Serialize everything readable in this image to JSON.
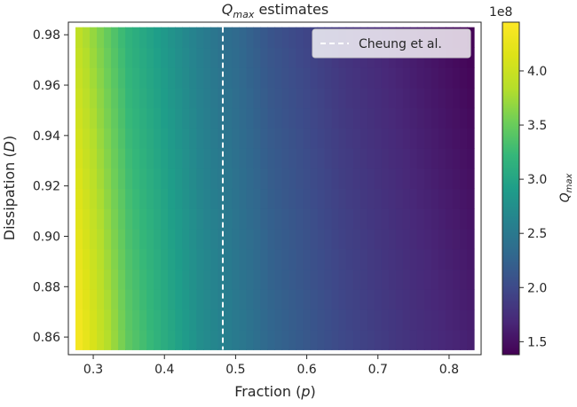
{
  "chart_data": {
    "type": "heatmap",
    "title": {
      "main": "Q",
      "sub": "max",
      "rest": " estimates"
    },
    "xlabel": {
      "pre": "Fraction (",
      "var": "p",
      "post": ")"
    },
    "ylabel": {
      "pre": "Dissipation (",
      "var": "D",
      "post": ")"
    },
    "x_range": [
      0.275,
      0.835
    ],
    "y_range": [
      0.855,
      0.983
    ],
    "xlim": [
      0.265,
      0.845
    ],
    "ylim": [
      0.853,
      0.985
    ],
    "x_ticks": [
      0.3,
      0.4,
      0.5,
      0.6,
      0.7,
      0.8
    ],
    "x_tick_labels": [
      "0.3",
      "0.4",
      "0.5",
      "0.6",
      "0.7",
      "0.8"
    ],
    "y_ticks": [
      0.86,
      0.88,
      0.9,
      0.92,
      0.94,
      0.96,
      0.98
    ],
    "y_tick_labels": [
      "0.86",
      "0.88",
      "0.90",
      "0.92",
      "0.94",
      "0.96",
      "0.98"
    ],
    "grid": false,
    "colormap": "viridis",
    "colorbar": {
      "label": {
        "main": "Q",
        "sub": "max"
      },
      "range": [
        1.38,
        4.45
      ],
      "multiplier": "1e8",
      "ticks": [
        1.5,
        2.0,
        2.5,
        3.0,
        3.5,
        4.0
      ],
      "tick_labels": [
        "1.5",
        "2.0",
        "2.5",
        "3.0",
        "3.5",
        "4.0"
      ]
    },
    "surface": {
      "description_of_trend": "Q_max decreases with fraction p, increases slightly as dissipation D decreases",
      "value_at_p": [
        {
          "p": 0.275,
          "Q_at_D_0.983": 3.95,
          "Q_at_D_0.855": 4.45
        },
        {
          "p": 0.35,
          "Q_at_D_0.983": 3.15,
          "Q_at_D_0.855": 3.45
        },
        {
          "p": 0.45,
          "Q_at_D_0.983": 2.55,
          "Q_at_D_0.855": 2.75
        },
        {
          "p": 0.55,
          "Q_at_D_0.983": 2.1,
          "Q_at_D_0.855": 2.3
        },
        {
          "p": 0.65,
          "Q_at_D_0.983": 1.8,
          "Q_at_D_0.855": 2.0
        },
        {
          "p": 0.75,
          "Q_at_D_0.983": 1.58,
          "Q_at_D_0.855": 1.78
        },
        {
          "p": 0.835,
          "Q_at_D_0.983": 1.38,
          "Q_at_D_0.855": 1.62
        }
      ]
    },
    "reference_line": {
      "x": 0.482,
      "label": "Cheung et al.",
      "style": "dashed",
      "color": "#ffffff"
    },
    "legend_position": "top-right"
  }
}
